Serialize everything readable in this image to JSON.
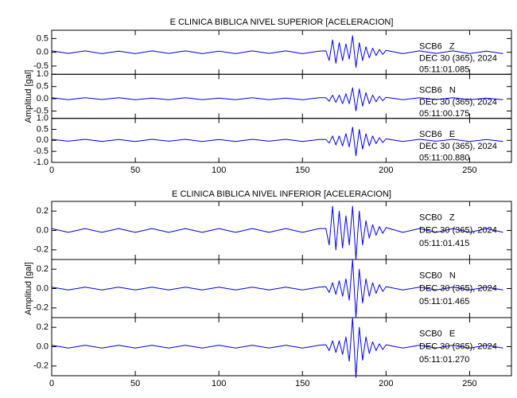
{
  "chart_data": [
    {
      "type": "line",
      "title": "E CLINICA BIBLICA NIVEL SUPERIOR [ACELERACION]",
      "ylabel": "Amplitud [gal]",
      "color": "#0000ee",
      "xlim": [
        0,
        275
      ],
      "xticks": [
        0,
        50,
        100,
        150,
        200,
        250
      ],
      "x": [
        0,
        10,
        20,
        30,
        40,
        50,
        60,
        70,
        80,
        90,
        100,
        110,
        120,
        130,
        140,
        150,
        160,
        164,
        166,
        168,
        170,
        172,
        174,
        176,
        178,
        180,
        182,
        184,
        186,
        188,
        190,
        192,
        194,
        196,
        198,
        200,
        210,
        220,
        230,
        240,
        250,
        260,
        270
      ],
      "panels": [
        {
          "station": "SCB6   Z",
          "date": "DEC 30 (365), 2024",
          "time": "05:11:01.085",
          "ylim": [
            -0.8,
            0.8
          ],
          "yticks": [
            0.5,
            {
              "value": 0,
              "label": "0.0"
            },
            -0.5
          ],
          "values": [
            0.05,
            -0.04,
            0.05,
            -0.05,
            0.04,
            -0.05,
            0.05,
            -0.04,
            0.05,
            -0.05,
            0.04,
            -0.05,
            0.05,
            -0.04,
            0.05,
            -0.05,
            0.04,
            0.05,
            -0.3,
            0.45,
            -0.4,
            0.35,
            -0.3,
            0.3,
            -0.25,
            0.6,
            -0.55,
            0.35,
            -0.3,
            0.2,
            -0.2,
            0.15,
            -0.12,
            0.1,
            -0.08,
            0.07,
            -0.05,
            0.05,
            -0.04,
            0.05,
            -0.05,
            0.04,
            -0.05
          ]
        },
        {
          "station": "SCB6   N",
          "date": "DEC 30 (365), 2024",
          "time": "05:11:00.175",
          "ylim": [
            -0.8,
            1.0
          ],
          "yticks": [
            {
              "value": 1,
              "label": "1.0"
            },
            0.5,
            {
              "value": 0,
              "label": "0.0"
            },
            -0.5
          ],
          "values": [
            0.04,
            -0.04,
            0.04,
            -0.03,
            0.04,
            -0.04,
            0.03,
            -0.04,
            0.04,
            -0.04,
            0.03,
            -0.04,
            0.04,
            -0.04,
            0.03,
            -0.04,
            0.04,
            0.04,
            -0.1,
            0.15,
            -0.15,
            0.15,
            -0.2,
            0.2,
            -0.2,
            0.45,
            -0.5,
            0.4,
            -0.3,
            0.25,
            -0.2,
            0.15,
            -0.12,
            0.1,
            -0.08,
            0.06,
            -0.04,
            0.04,
            -0.03,
            0.04,
            -0.04,
            0.03,
            -0.04
          ]
        },
        {
          "station": "SCB6   E",
          "date": "DEC 30 (365), 2024",
          "time": "05:11:00.880",
          "ylim": [
            -1.0,
            1.0
          ],
          "yticks": [
            {
              "value": 1,
              "label": "1.0"
            },
            0.5,
            {
              "value": 0,
              "label": "0.0"
            },
            -0.5,
            {
              "value": -1,
              "label": "-1.0"
            }
          ],
          "values": [
            0.05,
            -0.04,
            0.05,
            -0.05,
            0.04,
            -0.05,
            0.05,
            -0.04,
            0.05,
            -0.05,
            0.04,
            -0.05,
            0.05,
            -0.04,
            0.05,
            -0.05,
            0.04,
            0.04,
            -0.12,
            0.2,
            -0.2,
            0.2,
            -0.25,
            0.3,
            -0.3,
            0.6,
            -0.7,
            0.5,
            -0.4,
            0.3,
            -0.25,
            0.2,
            -0.15,
            0.12,
            -0.1,
            0.07,
            -0.05,
            0.05,
            -0.04,
            0.05,
            -0.05,
            0.04,
            -0.05
          ]
        }
      ]
    },
    {
      "type": "line",
      "title": "E CLINICA BIBLICA NIVEL INFERIOR [ACELERACION]",
      "ylabel": "Amplitud [gal]",
      "color": "#0000ee",
      "xlim": [
        0,
        275
      ],
      "xticks": [
        0,
        50,
        100,
        150,
        200,
        250
      ],
      "x": [
        0,
        10,
        20,
        30,
        40,
        50,
        60,
        70,
        80,
        90,
        100,
        110,
        120,
        130,
        140,
        150,
        160,
        164,
        166,
        168,
        170,
        172,
        174,
        176,
        178,
        180,
        182,
        184,
        186,
        188,
        190,
        192,
        194,
        196,
        198,
        200,
        210,
        220,
        230,
        240,
        250,
        260,
        270
      ],
      "panels": [
        {
          "station": "SCB0   Z",
          "date": "DEC 30 (365), 2024",
          "time": "05:11:01.415",
          "ylim": [
            -0.3,
            0.3
          ],
          "yticks": [
            0.2,
            {
              "value": 0,
              "label": "0.0"
            },
            -0.2
          ],
          "values": [
            0.02,
            -0.02,
            0.02,
            -0.02,
            0.02,
            -0.02,
            0.02,
            -0.02,
            0.02,
            -0.02,
            0.02,
            -0.02,
            0.02,
            -0.02,
            0.02,
            -0.02,
            0.02,
            0.02,
            -0.15,
            0.25,
            -0.2,
            0.2,
            -0.18,
            0.15,
            -0.15,
            0.25,
            -0.3,
            0.2,
            -0.15,
            0.1,
            -0.08,
            0.06,
            -0.05,
            0.04,
            -0.03,
            0.03,
            -0.02,
            0.02,
            -0.02,
            0.02,
            -0.02,
            0.02,
            -0.02
          ]
        },
        {
          "station": "SCB0   N",
          "date": "DEC 30 (365), 2024",
          "time": "05:11:01.465",
          "ylim": [
            -0.3,
            0.3
          ],
          "yticks": [
            0.2,
            {
              "value": 0,
              "label": "0.0"
            },
            -0.2
          ],
          "values": [
            0.015,
            -0.015,
            0.015,
            -0.015,
            0.015,
            -0.015,
            0.015,
            -0.015,
            0.015,
            -0.015,
            0.015,
            -0.015,
            0.015,
            -0.015,
            0.015,
            -0.015,
            0.015,
            0.02,
            -0.04,
            0.06,
            -0.06,
            0.08,
            -0.08,
            0.1,
            -0.12,
            0.3,
            -0.3,
            0.2,
            -0.15,
            0.1,
            -0.08,
            0.06,
            -0.05,
            0.04,
            -0.03,
            0.02,
            -0.015,
            0.015,
            -0.015,
            0.015,
            -0.015,
            0.015,
            -0.015
          ]
        },
        {
          "station": "SCB0   E",
          "date": "DEC 30 (365), 2024",
          "time": "05:11:01.270",
          "ylim": [
            -0.3,
            0.3
          ],
          "yticks": [
            0.2,
            {
              "value": 0,
              "label": "0.0"
            },
            -0.2
          ],
          "values": [
            0.015,
            -0.015,
            0.015,
            -0.015,
            0.015,
            -0.015,
            0.015,
            -0.015,
            0.015,
            -0.015,
            0.015,
            -0.015,
            0.015,
            -0.015,
            0.015,
            -0.015,
            0.015,
            0.02,
            -0.04,
            0.06,
            -0.06,
            0.06,
            -0.08,
            0.1,
            -0.15,
            0.3,
            -0.32,
            0.2,
            -0.14,
            0.1,
            -0.07,
            0.05,
            -0.04,
            0.03,
            -0.03,
            0.02,
            -0.015,
            0.015,
            -0.015,
            0.015,
            -0.015,
            0.015,
            -0.015
          ]
        }
      ]
    }
  ]
}
